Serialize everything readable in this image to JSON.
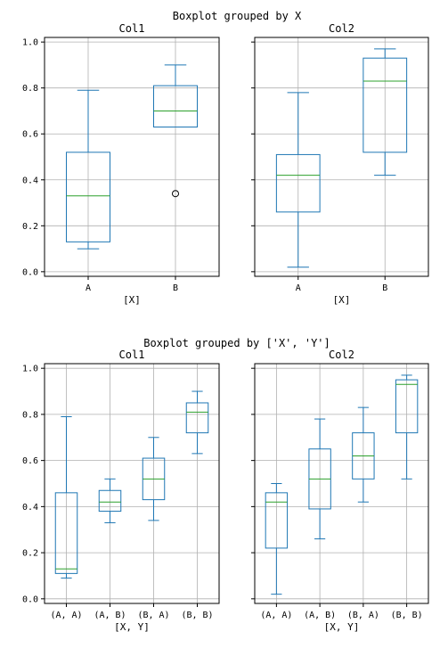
{
  "figure_titles": [
    "Boxplot grouped by X",
    "Boxplot grouped by ['X', 'Y']"
  ],
  "chart_data": [
    {
      "type": "boxplot",
      "title": "Col1",
      "xlabel": "[X]",
      "categories": [
        "A",
        "B"
      ],
      "ylim": [
        -0.02,
        1.02
      ],
      "yticks": [
        "0.0",
        "0.2",
        "0.4",
        "0.6",
        "0.8",
        "1.0"
      ],
      "grid": true,
      "boxes": [
        {
          "whisker_low": 0.1,
          "q1": 0.13,
          "median": 0.33,
          "q3": 0.52,
          "whisker_high": 0.79,
          "outliers": []
        },
        {
          "whisker_low": 0.63,
          "q1": 0.63,
          "median": 0.7,
          "q3": 0.81,
          "whisker_high": 0.9,
          "outliers": [
            0.34
          ]
        }
      ]
    },
    {
      "type": "boxplot",
      "title": "Col2",
      "xlabel": "[X]",
      "categories": [
        "A",
        "B"
      ],
      "ylim": [
        -0.02,
        1.02
      ],
      "yticks": [
        "0.0",
        "0.2",
        "0.4",
        "0.6",
        "0.8",
        "1.0"
      ],
      "grid": true,
      "boxes": [
        {
          "whisker_low": 0.02,
          "q1": 0.26,
          "median": 0.42,
          "q3": 0.51,
          "whisker_high": 0.78,
          "outliers": []
        },
        {
          "whisker_low": 0.42,
          "q1": 0.52,
          "median": 0.83,
          "q3": 0.93,
          "whisker_high": 0.97,
          "outliers": []
        }
      ]
    },
    {
      "type": "boxplot",
      "title": "Col1",
      "xlabel": "[X, Y]",
      "categories": [
        "(A, A)",
        "(A, B)",
        "(B, A)",
        "(B, B)"
      ],
      "ylim": [
        -0.02,
        1.02
      ],
      "yticks": [
        "0.0",
        "0.2",
        "0.4",
        "0.6",
        "0.8",
        "1.0"
      ],
      "grid": true,
      "boxes": [
        {
          "whisker_low": 0.09,
          "q1": 0.11,
          "median": 0.13,
          "q3": 0.46,
          "whisker_high": 0.79,
          "outliers": []
        },
        {
          "whisker_low": 0.33,
          "q1": 0.38,
          "median": 0.42,
          "q3": 0.47,
          "whisker_high": 0.52,
          "outliers": []
        },
        {
          "whisker_low": 0.34,
          "q1": 0.43,
          "median": 0.52,
          "q3": 0.61,
          "whisker_high": 0.7,
          "outliers": []
        },
        {
          "whisker_low": 0.63,
          "q1": 0.72,
          "median": 0.81,
          "q3": 0.85,
          "whisker_high": 0.9,
          "outliers": []
        }
      ]
    },
    {
      "type": "boxplot",
      "title": "Col2",
      "xlabel": "[X, Y]",
      "categories": [
        "(A, A)",
        "(A, B)",
        "(B, A)",
        "(B, B)"
      ],
      "ylim": [
        -0.02,
        1.02
      ],
      "yticks": [
        "0.0",
        "0.2",
        "0.4",
        "0.6",
        "0.8",
        "1.0"
      ],
      "grid": true,
      "boxes": [
        {
          "whisker_low": 0.02,
          "q1": 0.22,
          "median": 0.42,
          "q3": 0.46,
          "whisker_high": 0.5,
          "outliers": []
        },
        {
          "whisker_low": 0.26,
          "q1": 0.39,
          "median": 0.52,
          "q3": 0.65,
          "whisker_high": 0.78,
          "outliers": []
        },
        {
          "whisker_low": 0.42,
          "q1": 0.52,
          "median": 0.62,
          "q3": 0.72,
          "whisker_high": 0.83,
          "outliers": []
        },
        {
          "whisker_low": 0.52,
          "q1": 0.72,
          "median": 0.93,
          "q3": 0.95,
          "whisker_high": 0.97,
          "outliers": []
        }
      ]
    }
  ],
  "colors": {
    "box": "#1f77b4",
    "median": "#2ca02c",
    "grid": "#b0b0b0",
    "axis": "#000000"
  }
}
